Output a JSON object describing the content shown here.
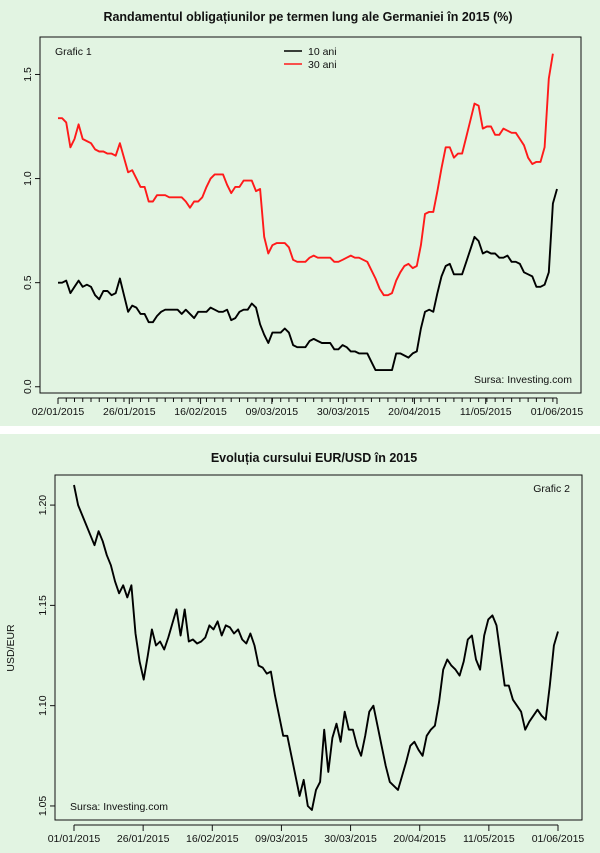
{
  "chart_data": [
    {
      "type": "line",
      "title": "Randamentul obligațiunilor pe termen lung ale Germaniei în 2015 (%)",
      "label": "Grafic 1",
      "source": "Sursa: Investing.com",
      "xlabel": "",
      "ylabel": "",
      "ylim": [
        -0.03,
        1.68
      ],
      "yticks": [
        "0.0",
        "0.5",
        "1.0",
        "1.5"
      ],
      "x_ticks": [
        "02/01/2015",
        "26/01/2015",
        "16/02/2015",
        "09/03/2015",
        "30/03/2015",
        "20/04/2015",
        "11/05/2015",
        "01/06/2015"
      ],
      "legend": [
        "10 ani",
        "30 ani"
      ],
      "colors": {
        "10 ani": "#000000",
        "30 ani": "#ff1a1a"
      },
      "series": [
        {
          "name": "10 ani",
          "values": [
            0.5,
            0.5,
            0.51,
            0.45,
            0.48,
            0.51,
            0.48,
            0.49,
            0.48,
            0.44,
            0.42,
            0.46,
            0.46,
            0.44,
            0.45,
            0.52,
            0.44,
            0.36,
            0.39,
            0.38,
            0.35,
            0.35,
            0.31,
            0.31,
            0.34,
            0.36,
            0.37,
            0.37,
            0.37,
            0.37,
            0.35,
            0.37,
            0.35,
            0.33,
            0.36,
            0.36,
            0.36,
            0.38,
            0.37,
            0.36,
            0.36,
            0.37,
            0.32,
            0.33,
            0.36,
            0.37,
            0.37,
            0.4,
            0.38,
            0.3,
            0.25,
            0.21,
            0.26,
            0.26,
            0.26,
            0.28,
            0.26,
            0.2,
            0.19,
            0.19,
            0.19,
            0.22,
            0.23,
            0.22,
            0.21,
            0.21,
            0.21,
            0.18,
            0.18,
            0.2,
            0.19,
            0.17,
            0.17,
            0.16,
            0.16,
            0.16,
            0.12,
            0.08,
            0.08,
            0.08,
            0.08,
            0.08,
            0.16,
            0.16,
            0.15,
            0.14,
            0.16,
            0.17,
            0.28,
            0.36,
            0.37,
            0.36,
            0.45,
            0.53,
            0.58,
            0.59,
            0.54,
            0.54,
            0.54,
            0.6,
            0.66,
            0.72,
            0.7,
            0.64,
            0.65,
            0.64,
            0.64,
            0.62,
            0.62,
            0.63,
            0.6,
            0.6,
            0.59,
            0.55,
            0.54,
            0.53,
            0.48,
            0.48,
            0.49,
            0.55,
            0.88,
            0.95
          ]
        },
        {
          "name": "30 ani",
          "values": [
            1.29,
            1.29,
            1.27,
            1.15,
            1.19,
            1.26,
            1.19,
            1.18,
            1.17,
            1.14,
            1.13,
            1.13,
            1.12,
            1.12,
            1.11,
            1.17,
            1.1,
            1.03,
            1.04,
            1.0,
            0.96,
            0.96,
            0.89,
            0.89,
            0.92,
            0.92,
            0.92,
            0.91,
            0.91,
            0.91,
            0.91,
            0.89,
            0.86,
            0.89,
            0.89,
            0.91,
            0.96,
            1.0,
            1.02,
            1.02,
            1.02,
            0.97,
            0.93,
            0.96,
            0.96,
            0.99,
            0.99,
            0.99,
            0.94,
            0.95,
            0.72,
            0.64,
            0.68,
            0.69,
            0.69,
            0.69,
            0.67,
            0.61,
            0.6,
            0.6,
            0.6,
            0.62,
            0.63,
            0.62,
            0.62,
            0.62,
            0.62,
            0.6,
            0.6,
            0.61,
            0.62,
            0.63,
            0.62,
            0.62,
            0.61,
            0.6,
            0.56,
            0.52,
            0.47,
            0.44,
            0.44,
            0.45,
            0.51,
            0.55,
            0.58,
            0.59,
            0.57,
            0.58,
            0.68,
            0.83,
            0.84,
            0.84,
            0.94,
            1.05,
            1.15,
            1.15,
            1.1,
            1.12,
            1.12,
            1.2,
            1.28,
            1.36,
            1.35,
            1.24,
            1.25,
            1.25,
            1.21,
            1.21,
            1.24,
            1.23,
            1.22,
            1.22,
            1.19,
            1.16,
            1.1,
            1.07,
            1.08,
            1.08,
            1.15,
            1.48,
            1.6
          ]
        }
      ]
    },
    {
      "type": "line",
      "title": "Evoluția cursului EUR/USD în 2015",
      "label": "Grafic 2",
      "source": "Sursa: Investing.com",
      "xlabel": "",
      "ylabel": "USD/EUR",
      "ylim": [
        1.043,
        1.215
      ],
      "yticks": [
        "1.05",
        "1.10",
        "1.15",
        "1.20"
      ],
      "x_ticks": [
        "01/01/2015",
        "26/01/2015",
        "16/02/2015",
        "09/03/2015",
        "30/03/2015",
        "20/04/2015",
        "11/05/2015",
        "01/06/2015"
      ],
      "legend": [],
      "colors": {
        "EUR/USD": "#000000"
      },
      "series": [
        {
          "name": "EUR/USD",
          "values": [
            1.21,
            1.2,
            1.195,
            1.19,
            1.185,
            1.18,
            1.187,
            1.182,
            1.175,
            1.17,
            1.162,
            1.156,
            1.16,
            1.154,
            1.16,
            1.136,
            1.122,
            1.113,
            1.125,
            1.138,
            1.13,
            1.132,
            1.128,
            1.134,
            1.141,
            1.148,
            1.135,
            1.148,
            1.132,
            1.133,
            1.131,
            1.132,
            1.134,
            1.14,
            1.138,
            1.142,
            1.135,
            1.14,
            1.139,
            1.136,
            1.138,
            1.133,
            1.131,
            1.136,
            1.13,
            1.12,
            1.119,
            1.116,
            1.117,
            1.105,
            1.095,
            1.085,
            1.085,
            1.075,
            1.065,
            1.055,
            1.063,
            1.05,
            1.048,
            1.058,
            1.062,
            1.088,
            1.067,
            1.084,
            1.091,
            1.082,
            1.097,
            1.088,
            1.088,
            1.08,
            1.075,
            1.085,
            1.097,
            1.1,
            1.09,
            1.08,
            1.07,
            1.062,
            1.06,
            1.058,
            1.065,
            1.072,
            1.08,
            1.082,
            1.078,
            1.075,
            1.085,
            1.088,
            1.09,
            1.102,
            1.118,
            1.123,
            1.12,
            1.118,
            1.115,
            1.122,
            1.133,
            1.135,
            1.123,
            1.118,
            1.135,
            1.143,
            1.145,
            1.14,
            1.125,
            1.11,
            1.11,
            1.103,
            1.1,
            1.097,
            1.088,
            1.092,
            1.095,
            1.098,
            1.095,
            1.093,
            1.11,
            1.13,
            1.137
          ]
        }
      ]
    }
  ]
}
